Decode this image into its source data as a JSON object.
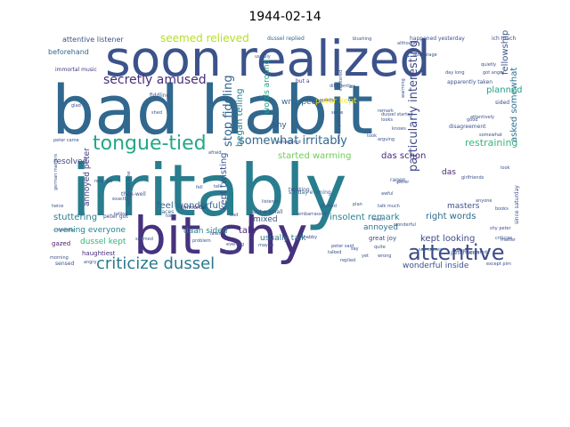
{
  "chart_data": {
    "type": "wordcloud",
    "title": "1944-02-14",
    "background": "#ffffff",
    "palette": [
      "#440154",
      "#3b528b",
      "#21918c",
      "#5ec962",
      "#fde725"
    ],
    "words": [
      {
        "text": "bad habit",
        "weight": 100,
        "color": "#31688e"
      },
      {
        "text": "irritably",
        "weight": 96,
        "color": "#287d8e"
      },
      {
        "text": "soon realized",
        "weight": 70,
        "color": "#3b528b"
      },
      {
        "text": "bit shy",
        "weight": 66,
        "color": "#46327e"
      },
      {
        "text": "attentive",
        "weight": 30,
        "color": "#3e4a89"
      },
      {
        "text": "tongue-tied",
        "weight": 27,
        "color": "#22a884"
      },
      {
        "text": "criticize dussel",
        "weight": 24,
        "color": "#2a788e"
      },
      {
        "text": "secretly amused",
        "weight": 18,
        "color": "#472d7b"
      },
      {
        "text": "somewhat irritably",
        "weight": 17,
        "color": "#31688e"
      },
      {
        "text": "particularly interesting",
        "weight": 17,
        "color": "#3e4989"
      },
      {
        "text": "stop fiddling",
        "weight": 16,
        "color": "#33638d"
      },
      {
        "text": "seemed relieved",
        "weight": 15,
        "color": "#b5de2b"
      },
      {
        "text": "restraining",
        "weight": 13,
        "color": "#35b779"
      },
      {
        "text": "asked somewhat",
        "weight": 12,
        "color": "#2c728e"
      },
      {
        "text": "started warming",
        "weight": 12,
        "color": "#6ece58"
      },
      {
        "text": "kept twisting",
        "weight": 13,
        "color": "#3b528b"
      },
      {
        "text": "began telling",
        "weight": 12,
        "color": "#277f8e"
      },
      {
        "text": "fellowship",
        "weight": 12,
        "color": "#3b528b"
      },
      {
        "text": "planned",
        "weight": 12,
        "color": "#1fa187"
      },
      {
        "text": "das schon",
        "weight": 13,
        "color": "#482878"
      },
      {
        "text": "insolent remark",
        "weight": 12,
        "color": "#25848e"
      },
      {
        "text": "right words",
        "weight": 12,
        "color": "#31688e"
      },
      {
        "text": "kept looking",
        "weight": 12,
        "color": "#3e4a89"
      },
      {
        "text": "wonderful inside",
        "weight": 11,
        "color": "#3b528b"
      },
      {
        "text": "usually talk",
        "weight": 11,
        "color": "#2c728e"
      },
      {
        "text": "feel wonderful",
        "weight": 12,
        "color": "#31688e"
      },
      {
        "text": "evening everyone",
        "weight": 11,
        "color": "#26828e"
      },
      {
        "text": "stuttering",
        "weight": 12,
        "color": "#287d8e"
      },
      {
        "text": "resolved",
        "weight": 11,
        "color": "#3e4989"
      },
      {
        "text": "dussel kept",
        "weight": 11,
        "color": "#31b57b"
      },
      {
        "text": "annoyed peter",
        "weight": 11,
        "color": "#443983"
      },
      {
        "text": "mixed",
        "weight": 11,
        "color": "#3b528b"
      },
      {
        "text": "talk",
        "weight": 12,
        "color": "#482878"
      },
      {
        "text": "daan sided",
        "weight": 11,
        "color": "#26828e"
      },
      {
        "text": "words around",
        "weight": 11,
        "color": "#20a386"
      },
      {
        "text": "peter kept",
        "weight": 11,
        "color": "#fde725"
      },
      {
        "text": "wrapped",
        "weight": 11,
        "color": "#31688e"
      },
      {
        "text": "attentive listener",
        "weight": 9,
        "color": "#3b528b"
      },
      {
        "text": "beforehand",
        "weight": 9,
        "color": "#31688e"
      },
      {
        "text": "immortal music",
        "weight": 8,
        "color": "#46327e"
      },
      {
        "text": "shy",
        "weight": 10,
        "color": "#3b528b"
      },
      {
        "text": "annoyed",
        "weight": 10,
        "color": "#2c728e"
      },
      {
        "text": "great joy",
        "weight": 9,
        "color": "#3e4a89"
      },
      {
        "text": "masters",
        "weight": 11,
        "color": "#3b528b"
      },
      {
        "text": "das",
        "weight": 11,
        "color": "#482878"
      },
      {
        "text": "disagreement",
        "weight": 8,
        "color": "#3b528b"
      },
      {
        "text": "gazed",
        "weight": 9,
        "color": "#481a6c"
      },
      {
        "text": "haughtiest",
        "weight": 8,
        "color": "#472d7b"
      },
      {
        "text": "sensed",
        "weight": 7,
        "color": "#3b528b"
      },
      {
        "text": "dussel replied",
        "weight": 8,
        "color": "#31688e"
      },
      {
        "text": "happened yesterday",
        "weight": 7,
        "color": "#3b528b"
      },
      {
        "text": "ich mach",
        "weight": 7,
        "color": "#3e4a89"
      },
      {
        "text": "peter soon",
        "weight": 7,
        "color": "#3b528b"
      },
      {
        "text": "say comes",
        "weight": 7,
        "color": "#31688e"
      },
      {
        "text": "except pim",
        "weight": 7,
        "color": "#3e4a89"
      },
      {
        "text": "sunday evening",
        "weight": 7,
        "color": "#31688e"
      },
      {
        "text": "twisting",
        "weight": 7,
        "color": "#3b528b"
      },
      {
        "text": "places",
        "weight": 7,
        "color": "#31688e"
      },
      {
        "text": "peter got",
        "weight": 7,
        "color": "#3e4a89"
      },
      {
        "text": "then-well",
        "weight": 7,
        "color": "#3b528b"
      },
      {
        "text": "immortal",
        "weight": 7,
        "color": "#482878"
      },
      {
        "text": "fiddling",
        "weight": 7,
        "color": "#3b528b"
      },
      {
        "text": "but a small",
        "weight": 7,
        "color": "#3b528b"
      },
      {
        "text": "but a",
        "weight": 7,
        "color": "#3e4a89"
      },
      {
        "text": "talking quietly",
        "weight": 6,
        "color": "#3b528b"
      },
      {
        "text": "apparently taken",
        "weight": 6,
        "color": "#3b528b"
      },
      {
        "text": "got angry",
        "weight": 6,
        "color": "#3b528b"
      },
      {
        "text": "sided",
        "weight": 6,
        "color": "#3e4a89"
      },
      {
        "text": "usually",
        "weight": 6,
        "color": "#3b528b"
      },
      {
        "text": "blushing",
        "weight": 6,
        "color": "#3b528b"
      },
      {
        "text": "remark",
        "weight": 6,
        "color": "#3b528b"
      },
      {
        "text": "ragen",
        "weight": 7,
        "color": "#3b528b"
      },
      {
        "text": "girlfriends",
        "weight": 6,
        "color": "#3b528b"
      },
      {
        "text": "haughtiest tone",
        "weight": 6,
        "color": "#3e4a89"
      },
      {
        "text": "embarrassed",
        "weight": 5,
        "color": "#3b528b"
      },
      {
        "text": "whispered",
        "weight": 5,
        "color": "#3b528b"
      },
      {
        "text": "twice",
        "weight": 5,
        "color": "#3b528b"
      },
      {
        "text": "quietly",
        "weight": 5,
        "color": "#3b528b"
      },
      {
        "text": "warming",
        "weight": 5,
        "color": "#3b528b"
      },
      {
        "text": "listener",
        "weight": 5,
        "color": "#3b528b"
      },
      {
        "text": "problem",
        "weight": 5,
        "color": "#3b528b"
      },
      {
        "text": "bad",
        "weight": 5,
        "color": "#3b528b"
      },
      {
        "text": "evening",
        "weight": 5,
        "color": "#3b528b"
      },
      {
        "text": "morning",
        "weight": 5,
        "color": "#3b528b"
      },
      {
        "text": "tell",
        "weight": 5,
        "color": "#3b528b"
      },
      {
        "text": "telling",
        "weight": 5,
        "color": "#3b528b"
      },
      {
        "text": "relieved",
        "weight": 5,
        "color": "#3b528b"
      },
      {
        "text": "angry",
        "weight": 5,
        "color": "#3b528b"
      },
      {
        "text": "afraid",
        "weight": 5,
        "color": "#3b528b"
      },
      {
        "text": "shed",
        "weight": 5,
        "color": "#3b528b"
      },
      {
        "text": "wandered",
        "weight": 5,
        "color": "#3b528b"
      },
      {
        "text": "dussel",
        "weight": 5,
        "color": "#3b528b"
      },
      {
        "text": "awful",
        "weight": 5,
        "color": "#3b528b"
      },
      {
        "text": "good",
        "weight": 5,
        "color": "#3b528b"
      },
      {
        "text": "clustered",
        "weight": 5,
        "color": "#3b528b"
      },
      {
        "text": "smile",
        "weight": 5,
        "color": "#3b528b"
      },
      {
        "text": "knows",
        "weight": 5,
        "color": "#3b528b"
      },
      {
        "text": "although",
        "weight": 5,
        "color": "#3b528b"
      },
      {
        "text": "look",
        "weight": 5,
        "color": "#3b528b"
      },
      {
        "text": "looks",
        "weight": 5,
        "color": "#3b528b"
      },
      {
        "text": "peter came",
        "weight": 5,
        "color": "#3b528b"
      },
      {
        "text": "german masters",
        "weight": 5,
        "color": "#3b528b"
      },
      {
        "text": "secretly",
        "weight": 5,
        "color": "#3b528b"
      },
      {
        "text": "somewhat",
        "weight": 5,
        "color": "#3b528b"
      },
      {
        "text": "seemed",
        "weight": 5,
        "color": "#3b528b"
      },
      {
        "text": "started",
        "weight": 5,
        "color": "#3b528b"
      },
      {
        "text": "differently",
        "weight": 5,
        "color": "#3b528b"
      },
      {
        "text": "attentively",
        "weight": 5,
        "color": "#3b528b"
      },
      {
        "text": "since saturday",
        "weight": 5,
        "color": "#3b528b"
      },
      {
        "text": "dussel started",
        "weight": 5,
        "color": "#3b528b"
      },
      {
        "text": "exactly",
        "weight": 5,
        "color": "#3b528b"
      },
      {
        "text": "peter",
        "weight": 5,
        "color": "#3b528b"
      },
      {
        "text": "matter",
        "weight": 5,
        "color": "#3b528b"
      },
      {
        "text": "art",
        "weight": 5,
        "color": "#3b528b"
      },
      {
        "text": "talk much",
        "weight": 5,
        "color": "#3b528b"
      },
      {
        "text": "criticize",
        "weight": 5,
        "color": "#3b528b"
      },
      {
        "text": "mach",
        "weight": 5,
        "color": "#3b528b"
      },
      {
        "text": "plan",
        "weight": 5,
        "color": "#3b528b"
      },
      {
        "text": "replied",
        "weight": 5,
        "color": "#3b528b"
      },
      {
        "text": "advantage",
        "weight": 5,
        "color": "#3b528b"
      },
      {
        "text": "wonderful",
        "weight": 5,
        "color": "#3b528b"
      },
      {
        "text": "anyone",
        "weight": 5,
        "color": "#3b528b"
      },
      {
        "text": "remark peter",
        "weight": 5,
        "color": "#3b528b"
      },
      {
        "text": "day long",
        "weight": 5,
        "color": "#3b528b"
      },
      {
        "text": "arguing",
        "weight": 5,
        "color": "#3b528b"
      },
      {
        "text": "took",
        "weight": 5,
        "color": "#3b528b"
      },
      {
        "text": "books",
        "weight": 5,
        "color": "#3b528b"
      },
      {
        "text": "shy peter",
        "weight": 5,
        "color": "#3b528b"
      },
      {
        "text": "say",
        "weight": 5,
        "color": "#3b528b"
      },
      {
        "text": "later",
        "weight": 5,
        "color": "#3b528b"
      },
      {
        "text": "maybe",
        "weight": 5,
        "color": "#3b528b"
      },
      {
        "text": "known",
        "weight": 5,
        "color": "#3b528b"
      },
      {
        "text": "shabby",
        "weight": 5,
        "color": "#3b528b"
      },
      {
        "text": "talked",
        "weight": 5,
        "color": "#3b528b"
      },
      {
        "text": "tone",
        "weight": 5,
        "color": "#3b528b"
      },
      {
        "text": "quite",
        "weight": 5,
        "color": "#3b528b"
      },
      {
        "text": "wrong",
        "weight": 5,
        "color": "#3b528b"
      },
      {
        "text": "peter said",
        "weight": 5,
        "color": "#3b528b"
      },
      {
        "text": "glad",
        "weight": 5,
        "color": "#3b528b"
      },
      {
        "text": "yet",
        "weight": 5,
        "color": "#3b528b"
      },
      {
        "text": "fell",
        "weight": 5,
        "color": "#3b528b"
      }
    ]
  }
}
